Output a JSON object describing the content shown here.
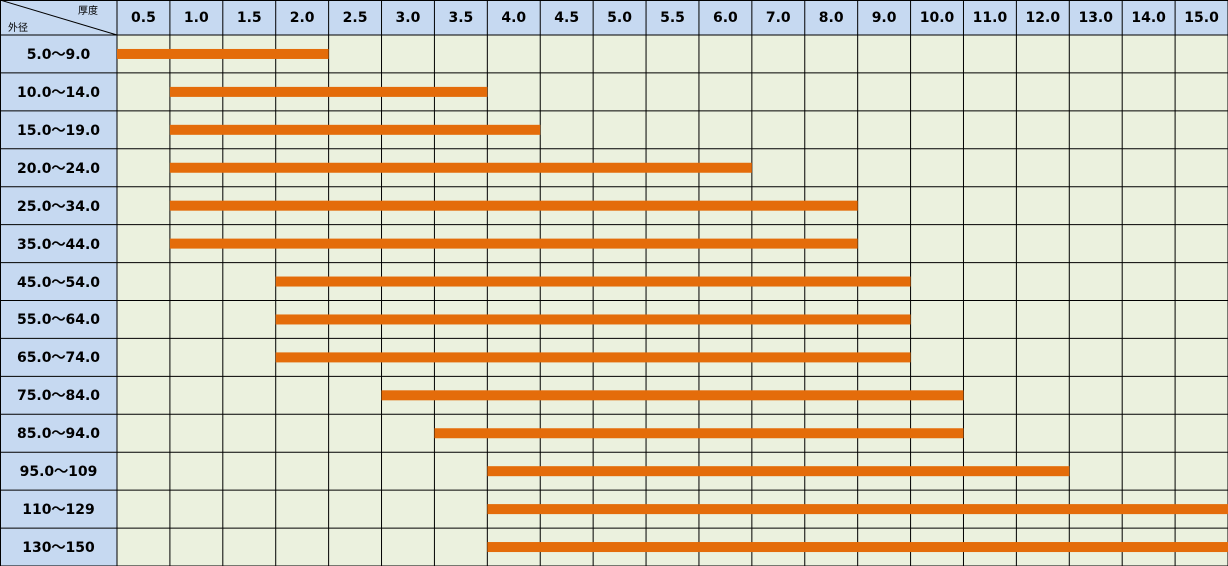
{
  "corner": {
    "top_label": "厚度",
    "bottom_label": "外径"
  },
  "colors": {
    "header_bg": "#c6d9f1",
    "cell_bg": "#ebf1de",
    "bar": "#e46c0a",
    "grid": "#000000"
  },
  "chart_data": {
    "type": "table",
    "subtype": "range-bar",
    "x_axis_label": "厚度",
    "y_axis_label": "外径",
    "columns": [
      "0.5",
      "1.0",
      "1.5",
      "2.0",
      "2.5",
      "3.0",
      "3.5",
      "4.0",
      "4.5",
      "5.0",
      "5.5",
      "6.0",
      "7.0",
      "8.0",
      "9.0",
      "10.0",
      "11.0",
      "12.0",
      "13.0",
      "14.0",
      "15.0"
    ],
    "rows": [
      {
        "label": "5.0～9.0",
        "from": "0.5",
        "to": "2.0"
      },
      {
        "label": "10.0～14.0",
        "from": "1.0",
        "to": "3.5"
      },
      {
        "label": "15.0～19.0",
        "from": "1.0",
        "to": "4.0"
      },
      {
        "label": "20.0～24.0",
        "from": "1.0",
        "to": "6.0"
      },
      {
        "label": "25.0～34.0",
        "from": "1.0",
        "to": "8.0"
      },
      {
        "label": "35.0～44.0",
        "from": "1.0",
        "to": "8.0"
      },
      {
        "label": "45.0～54.0",
        "from": "2.0",
        "to": "9.0"
      },
      {
        "label": "55.0～64.0",
        "from": "2.0",
        "to": "9.0"
      },
      {
        "label": "65.0～74.0",
        "from": "2.0",
        "to": "9.0"
      },
      {
        "label": "75.0～84.0",
        "from": "3.0",
        "to": "10.0"
      },
      {
        "label": "85.0～94.0",
        "from": "3.5",
        "to": "10.0"
      },
      {
        "label": "95.0～109",
        "from": "4.0",
        "to": "12.0"
      },
      {
        "label": "110～129",
        "from": "4.0",
        "to": "15.0"
      },
      {
        "label": "130～150",
        "from": "4.0",
        "to": "15.0"
      }
    ]
  }
}
